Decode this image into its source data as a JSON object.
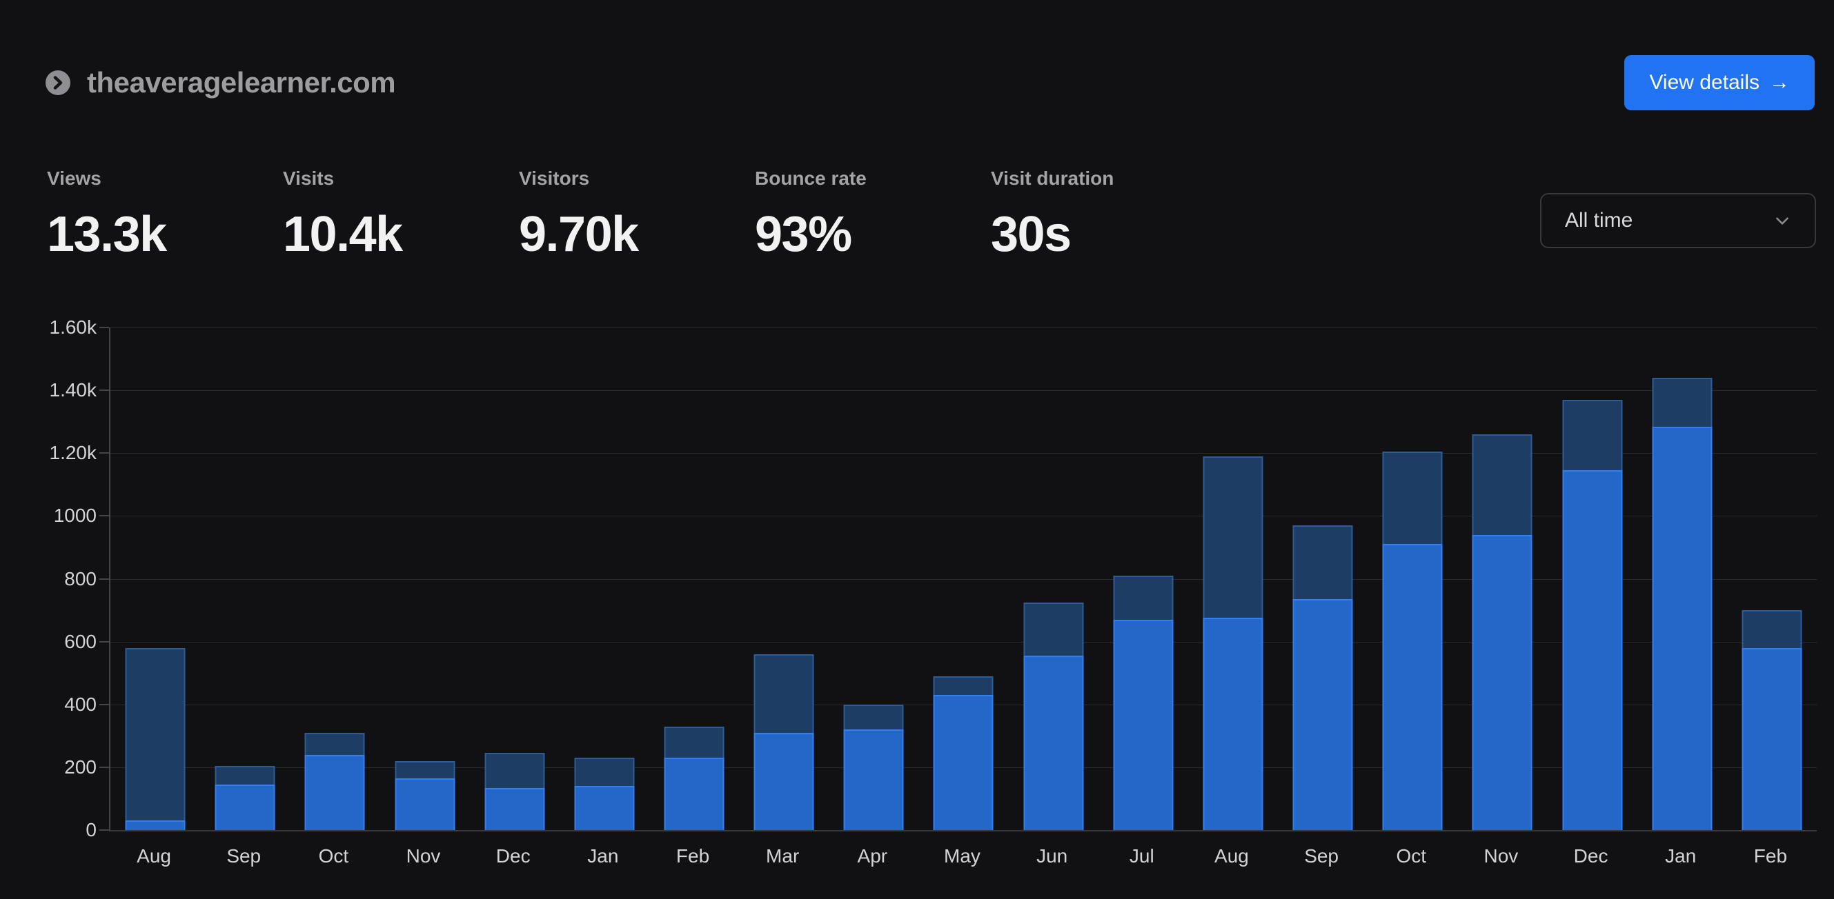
{
  "header": {
    "site": "theaveragelearner.com",
    "view_details_label": "View details",
    "view_details_arrow": "→"
  },
  "stats": [
    {
      "label": "Views",
      "value": "13.3k"
    },
    {
      "label": "Visits",
      "value": "10.4k"
    },
    {
      "label": "Visitors",
      "value": "9.70k"
    },
    {
      "label": "Bounce rate",
      "value": "93%"
    },
    {
      "label": "Visit duration",
      "value": "30s"
    }
  ],
  "time_range": {
    "selected": "All time"
  },
  "colors": {
    "background": "#111113",
    "accent_button_blue": "#2173f2",
    "views_fill": "#1d3d64",
    "views_border": "#2b5d9b",
    "visitors_fill": "#2566c9",
    "visitors_border": "#3180f3",
    "gridline": "#2b2b2e",
    "label_gray": "#d3d3d6"
  },
  "chart_data": {
    "type": "bar",
    "title": "",
    "xlabel": "",
    "ylabel": "",
    "categories": [
      "Aug",
      "Sep",
      "Oct",
      "Nov",
      "Dec",
      "Jan",
      "Feb",
      "Mar",
      "Apr",
      "May",
      "Jun",
      "Jul",
      "Aug",
      "Sep",
      "Oct",
      "Nov",
      "Dec",
      "Jan",
      "Feb"
    ],
    "series": [
      {
        "name": "Views",
        "values": [
          580,
          205,
          310,
          220,
          245,
          230,
          330,
          560,
          400,
          490,
          725,
          810,
          1190,
          970,
          1205,
          1260,
          1370,
          1440,
          700
        ]
      },
      {
        "name": "Visitors",
        "values": [
          30,
          145,
          240,
          165,
          135,
          140,
          230,
          310,
          320,
          430,
          555,
          670,
          675,
          735,
          910,
          940,
          1145,
          1285,
          580
        ]
      }
    ],
    "ylim": [
      0,
      1600
    ],
    "y_tick_step": 200,
    "y_ticks": [
      "1.60k",
      "1.40k",
      "1.20k",
      "1000",
      "800",
      "600",
      "400",
      "200",
      "0"
    ],
    "grid": true,
    "legend_position": "none",
    "overlay_style": "visitors bar drawn in front of views bar (not stacked)"
  }
}
